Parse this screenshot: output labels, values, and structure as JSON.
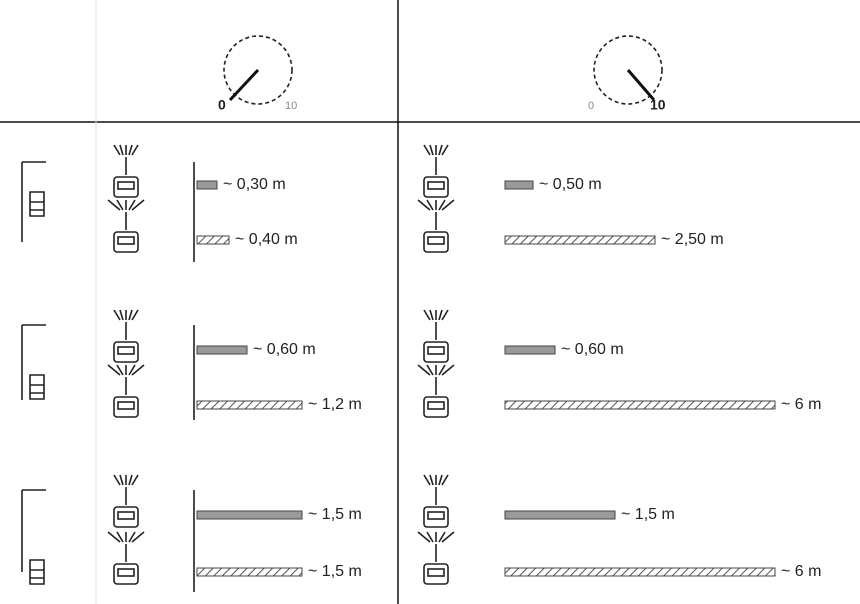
{
  "header": {
    "left_dial": {
      "min": "0",
      "max": "10"
    },
    "right_dial": {
      "min": "0",
      "max": "10"
    }
  },
  "rows": [
    {
      "left": [
        "~ 0,30 m",
        "~ 0,40 m"
      ],
      "right": [
        "~ 0,50 m",
        "~ 2,50 m"
      ]
    },
    {
      "left": [
        "~ 0,60 m",
        "~ 1,2 m"
      ],
      "right": [
        "~ 0,60 m",
        "~ 6 m"
      ]
    },
    {
      "left": [
        "~ 1,5 m",
        "~ 1,5 m"
      ],
      "right": [
        "~ 1,5 m",
        "~ 6 m"
      ]
    }
  ]
}
